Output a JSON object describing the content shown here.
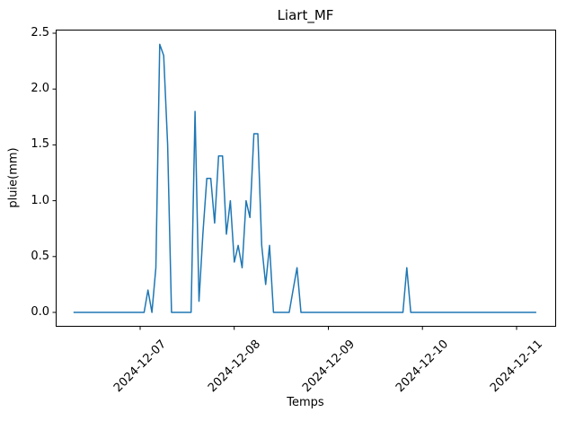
{
  "chart_data": {
    "type": "line",
    "title": "Liart_MF",
    "xlabel": "Temps",
    "ylabel": "pluie(mm)",
    "line_color": "#1f77b4",
    "grid": false,
    "legend": "none",
    "x_tick_labels": [
      "2024-12-07",
      "2024-12-08",
      "2024-12-09",
      "2024-12-10",
      "2024-12-11"
    ],
    "y_tick_labels": [
      "0.0",
      "0.5",
      "1.0",
      "1.5",
      "2.0",
      "2.5"
    ],
    "ylim": [
      -0.12,
      2.52
    ],
    "series": [
      {
        "name": "pluie",
        "start": "2024-12-06 07:00",
        "interval_hours": 1,
        "values": [
          0,
          0,
          0,
          0,
          0,
          0,
          0,
          0,
          0,
          0,
          0,
          0,
          0,
          0,
          0,
          0,
          0,
          0,
          0,
          0.2,
          0,
          0.4,
          2.4,
          2.3,
          1.5,
          0,
          0,
          0,
          0,
          0,
          0,
          1.8,
          0.1,
          0.7,
          1.2,
          1.2,
          0.8,
          1.4,
          1.4,
          0.7,
          1.0,
          0.45,
          0.6,
          0.4,
          1.0,
          0.85,
          1.6,
          1.6,
          0.6,
          0.25,
          0.6,
          0,
          0,
          0,
          0,
          0,
          0.2,
          0.4,
          0,
          0,
          0,
          0,
          0,
          0,
          0,
          0,
          0,
          0,
          0,
          0,
          0,
          0,
          0,
          0,
          0,
          0,
          0,
          0,
          0,
          0,
          0,
          0,
          0,
          0,
          0,
          0.4,
          0,
          0,
          0,
          0,
          0,
          0,
          0,
          0,
          0,
          0,
          0,
          0,
          0,
          0,
          0,
          0,
          0,
          0,
          0,
          0,
          0,
          0,
          0,
          0,
          0,
          0,
          0,
          0,
          0,
          0,
          0,
          0,
          0
        ]
      }
    ]
  }
}
